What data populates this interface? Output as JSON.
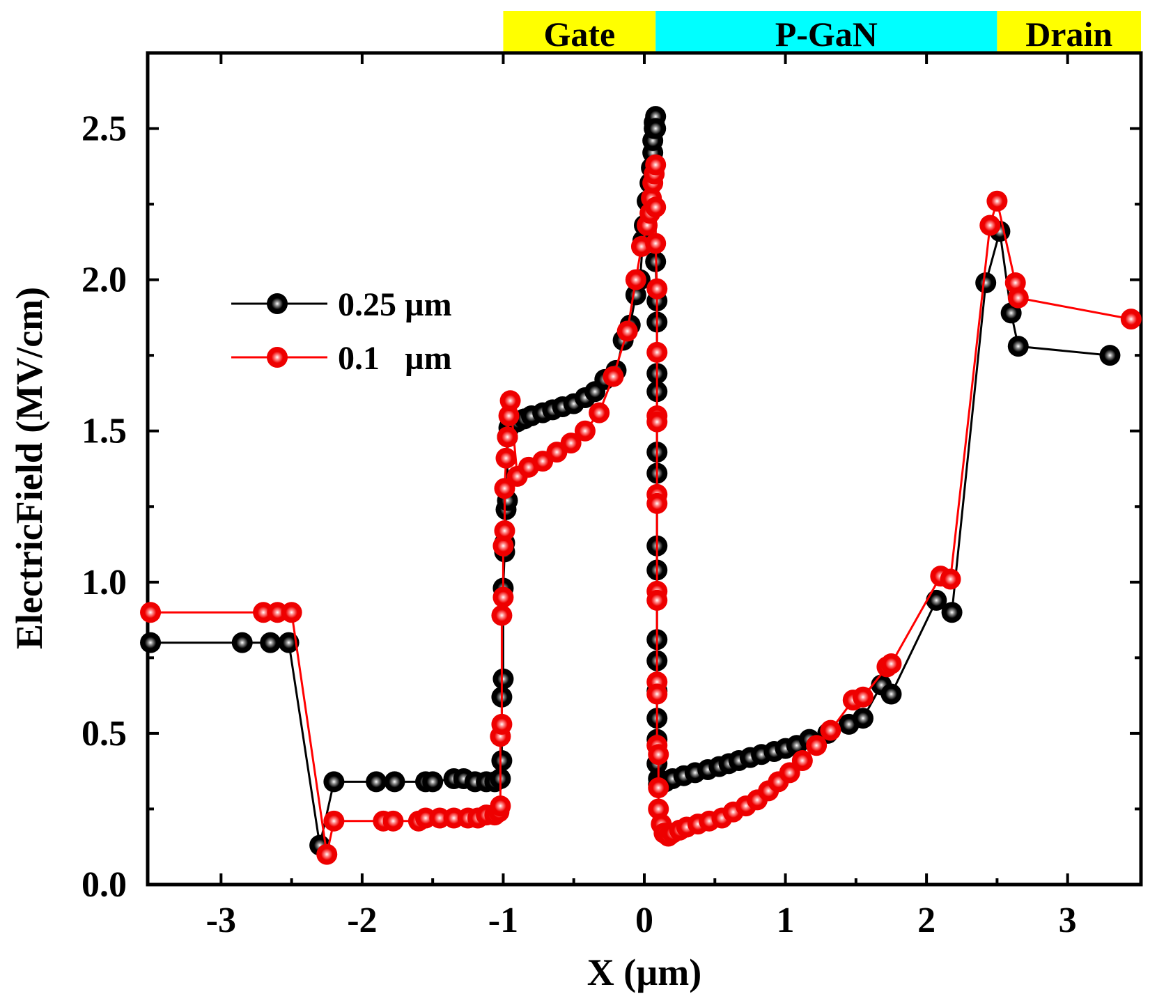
{
  "chart_data": {
    "type": "line",
    "title": "",
    "xlabel": "X (µm)",
    "ylabel": "ElectricField (MV/cm)",
    "xlim": [
      -3.52,
      3.52
    ],
    "ylim": [
      0.0,
      2.75
    ],
    "xticks": [
      -3,
      -2,
      -1,
      0,
      1,
      2,
      3
    ],
    "xtick_labels": [
      "-3",
      "-2",
      "-1",
      "0",
      "1",
      "2",
      "3"
    ],
    "yticks": [
      0.0,
      0.5,
      1.0,
      1.5,
      2.0,
      2.5
    ],
    "ytick_labels": [
      "0.0",
      "0.5",
      "1.0",
      "1.5",
      "2.0",
      "2.5"
    ],
    "grid": false,
    "legend_position": "upper-left",
    "regions": [
      {
        "label": "Gate",
        "x_start": -1.0,
        "x_end": 0.08,
        "color": "#ffff00"
      },
      {
        "label": "P-GaN",
        "x_start": 0.08,
        "x_end": 2.5,
        "color": "#00ffff"
      },
      {
        "label": "Drain",
        "x_start": 2.5,
        "x_end": 3.52,
        "color": "#ffff00"
      }
    ],
    "series": [
      {
        "name": "0.25 µm",
        "color": "#000000",
        "legend_label": "0.25 µm",
        "x": [
          -3.5,
          -2.85,
          -2.65,
          -2.52,
          -2.3,
          -2.2,
          -1.9,
          -1.77,
          -1.55,
          -1.5,
          -1.35,
          -1.28,
          -1.2,
          -1.12,
          -1.06,
          -1.02,
          -1.01,
          -1.01,
          -1.0,
          -1.0,
          -0.99,
          -0.99,
          -0.98,
          -0.97,
          -0.97,
          -0.96,
          -0.95,
          -0.9,
          -0.85,
          -0.8,
          -0.72,
          -0.65,
          -0.58,
          -0.5,
          -0.42,
          -0.35,
          -0.28,
          -0.2,
          -0.15,
          -0.1,
          -0.06,
          -0.03,
          -0.01,
          0.0,
          0.02,
          0.04,
          0.05,
          0.06,
          0.06,
          0.07,
          0.07,
          0.08,
          0.08,
          0.08,
          0.09,
          0.09,
          0.09,
          0.09,
          0.09,
          0.09,
          0.09,
          0.09,
          0.09,
          0.09,
          0.09,
          0.09,
          0.09,
          0.09,
          0.1,
          0.1,
          0.12,
          0.15,
          0.2,
          0.28,
          0.36,
          0.45,
          0.53,
          0.6,
          0.67,
          0.75,
          0.83,
          0.92,
          1.0,
          1.08,
          1.17,
          1.3,
          1.45,
          1.55,
          1.68,
          1.75,
          2.07,
          2.18,
          2.42,
          2.52,
          2.6,
          2.65,
          3.3
        ],
        "y": [
          0.8,
          0.8,
          0.8,
          0.8,
          0.13,
          0.34,
          0.34,
          0.34,
          0.34,
          0.34,
          0.35,
          0.35,
          0.34,
          0.34,
          0.34,
          0.35,
          0.41,
          0.62,
          0.68,
          0.98,
          1.1,
          1.13,
          1.24,
          1.27,
          1.48,
          1.51,
          1.52,
          1.53,
          1.54,
          1.55,
          1.56,
          1.57,
          1.58,
          1.59,
          1.61,
          1.63,
          1.67,
          1.7,
          1.8,
          1.85,
          1.95,
          2.0,
          2.13,
          2.18,
          2.26,
          2.32,
          2.37,
          2.42,
          2.46,
          2.5,
          2.52,
          2.54,
          2.5,
          2.06,
          1.93,
          1.86,
          1.69,
          1.63,
          1.43,
          1.36,
          1.12,
          1.04,
          0.81,
          0.74,
          0.64,
          0.55,
          0.48,
          0.4,
          0.35,
          0.33,
          0.34,
          0.34,
          0.35,
          0.36,
          0.37,
          0.38,
          0.39,
          0.4,
          0.41,
          0.42,
          0.43,
          0.44,
          0.45,
          0.46,
          0.48,
          0.5,
          0.53,
          0.55,
          0.66,
          0.63,
          0.94,
          0.9,
          1.99,
          2.16,
          1.89,
          1.78,
          1.75
        ]
      },
      {
        "name": "0.1 µm",
        "color": "#ff0000",
        "legend_label": "0.1   µm",
        "x": [
          -3.5,
          -2.7,
          -2.6,
          -2.5,
          -2.25,
          -2.2,
          -1.85,
          -1.78,
          -1.6,
          -1.55,
          -1.45,
          -1.35,
          -1.25,
          -1.18,
          -1.12,
          -1.06,
          -1.03,
          -1.02,
          -1.02,
          -1.01,
          -1.01,
          -1.0,
          -1.0,
          -0.99,
          -0.99,
          -0.98,
          -0.97,
          -0.96,
          -0.95,
          -0.9,
          -0.82,
          -0.72,
          -0.62,
          -0.52,
          -0.42,
          -0.32,
          -0.22,
          -0.12,
          -0.06,
          -0.02,
          0.02,
          0.04,
          0.05,
          0.06,
          0.07,
          0.08,
          0.08,
          0.08,
          0.09,
          0.09,
          0.09,
          0.09,
          0.09,
          0.09,
          0.09,
          0.09,
          0.09,
          0.09,
          0.09,
          0.1,
          0.1,
          0.1,
          0.12,
          0.14,
          0.17,
          0.2,
          0.25,
          0.3,
          0.38,
          0.46,
          0.55,
          0.63,
          0.72,
          0.8,
          0.88,
          0.95,
          1.03,
          1.12,
          1.22,
          1.32,
          1.48,
          1.55,
          1.72,
          1.75,
          2.1,
          2.17,
          2.45,
          2.5,
          2.63,
          2.65,
          3.45
        ],
        "y": [
          0.9,
          0.9,
          0.9,
          0.9,
          0.1,
          0.21,
          0.21,
          0.21,
          0.21,
          0.22,
          0.22,
          0.22,
          0.22,
          0.22,
          0.23,
          0.23,
          0.24,
          0.26,
          0.49,
          0.53,
          0.89,
          0.95,
          1.12,
          1.17,
          1.31,
          1.41,
          1.48,
          1.55,
          1.6,
          1.35,
          1.38,
          1.4,
          1.43,
          1.46,
          1.5,
          1.56,
          1.68,
          1.83,
          2.0,
          2.11,
          2.18,
          2.22,
          2.27,
          2.32,
          2.35,
          2.38,
          2.24,
          2.12,
          1.97,
          1.76,
          1.55,
          1.53,
          1.29,
          1.26,
          0.97,
          0.94,
          0.67,
          0.63,
          0.46,
          0.43,
          0.32,
          0.25,
          0.2,
          0.17,
          0.16,
          0.17,
          0.18,
          0.19,
          0.2,
          0.21,
          0.22,
          0.24,
          0.26,
          0.28,
          0.31,
          0.34,
          0.37,
          0.41,
          0.46,
          0.51,
          0.61,
          0.62,
          0.72,
          0.73,
          1.02,
          1.01,
          2.18,
          2.26,
          1.99,
          1.94,
          1.87
        ]
      }
    ]
  }
}
